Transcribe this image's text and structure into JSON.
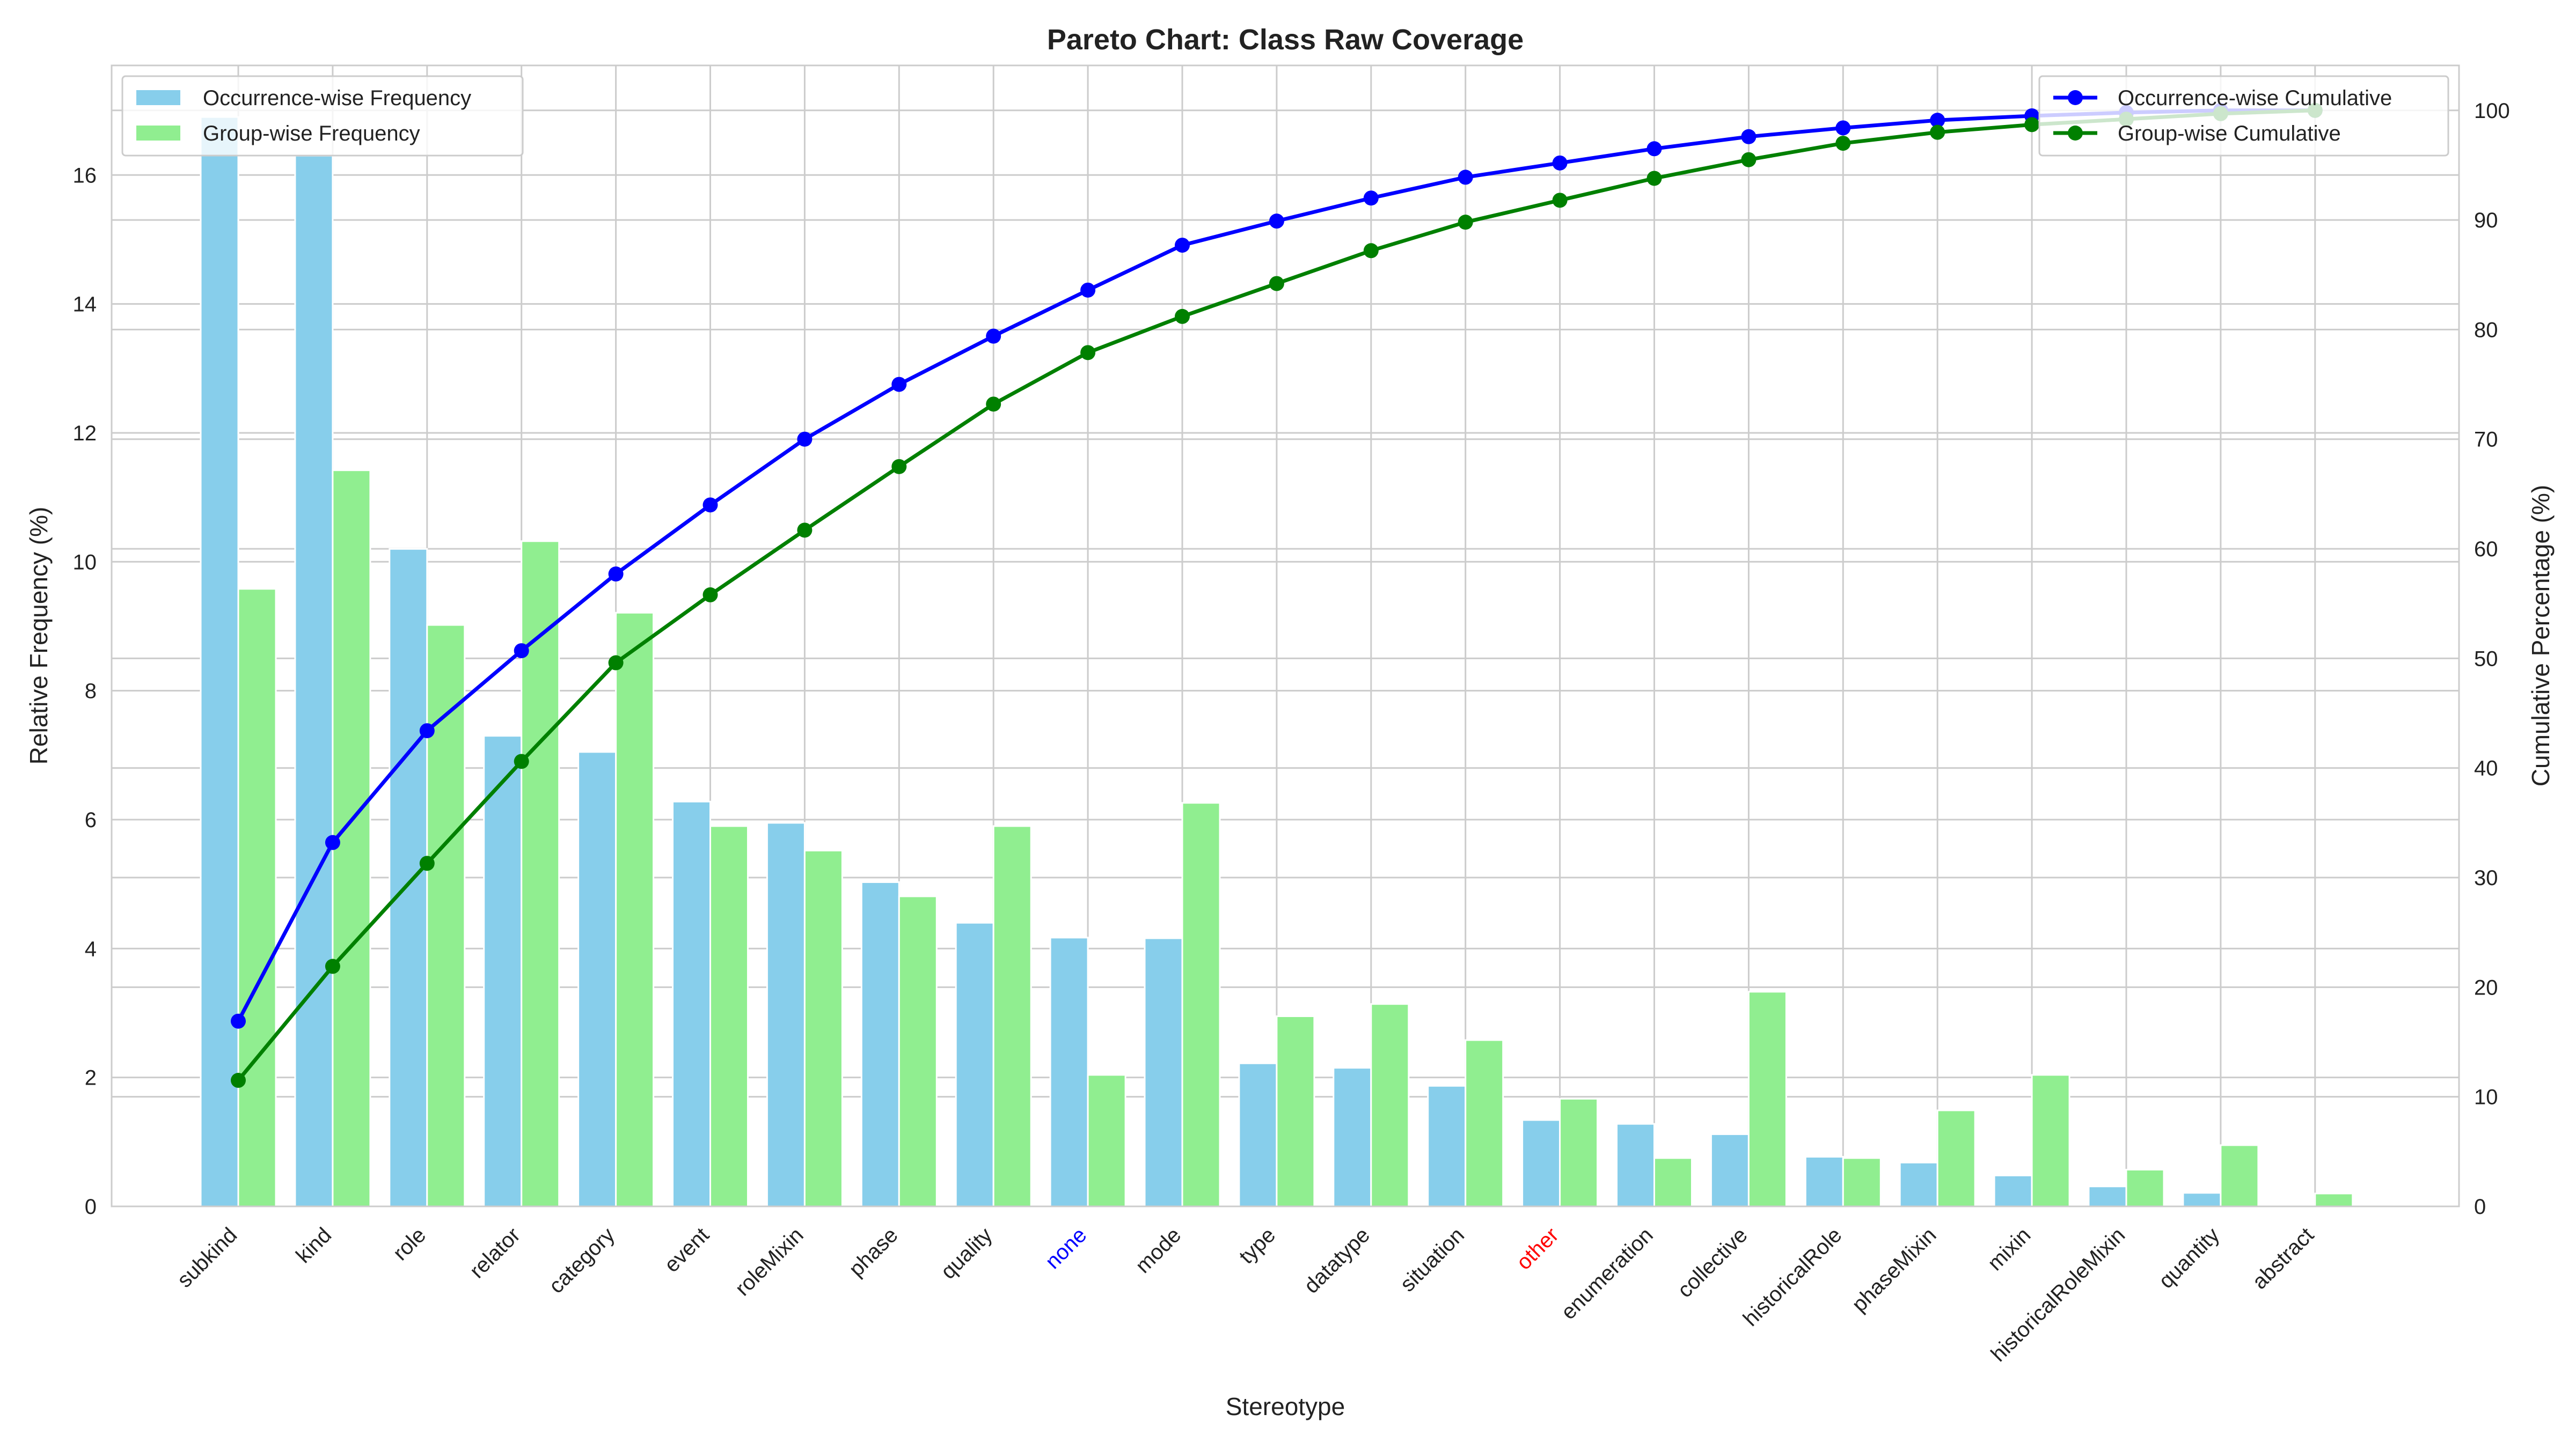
{
  "chart_data": {
    "type": "bar",
    "title": "Pareto Chart: Class Raw Coverage",
    "xlabel": "Stereotype",
    "ylabel": "Relative Frequency (%)",
    "y2label": "Cumulative Percentage (%)",
    "ylim": [
      0,
      17.7
    ],
    "y2lim": [
      0,
      104.1
    ],
    "yticks": [
      0,
      2,
      4,
      6,
      8,
      10,
      12,
      14,
      16
    ],
    "y2ticks": [
      0,
      10,
      20,
      30,
      40,
      50,
      60,
      70,
      80,
      90,
      100
    ],
    "grid": true,
    "categories": [
      "subkind",
      "kind",
      "role",
      "relator",
      "category",
      "event",
      "roleMixin",
      "phase",
      "quality",
      "none",
      "mode",
      "type",
      "datatype",
      "situation",
      "other",
      "enumeration",
      "collective",
      "historicalRole",
      "phaseMixin",
      "mixin",
      "historicalRoleMixin",
      "quantity",
      "abstract"
    ],
    "category_label_colors": {
      "none": "#0000ff",
      "other": "#ff0000"
    },
    "series": [
      {
        "name": "Occurrence-wise Frequency",
        "kind": "bar",
        "axis": "left",
        "color": "#87ceeb",
        "values": [
          16.9,
          16.3,
          10.2,
          7.3,
          7.05,
          6.28,
          5.95,
          5.03,
          4.4,
          4.17,
          4.16,
          2.22,
          2.15,
          1.87,
          1.34,
          1.28,
          1.12,
          0.77,
          0.68,
          0.48,
          0.31,
          0.21,
          0.0
        ]
      },
      {
        "name": "Group-wise Frequency",
        "kind": "bar",
        "axis": "left",
        "color": "#90ee90",
        "values": [
          9.58,
          11.42,
          9.02,
          10.32,
          9.21,
          5.9,
          5.52,
          4.81,
          5.9,
          2.04,
          6.26,
          2.95,
          3.14,
          2.58,
          1.67,
          0.75,
          3.33,
          0.75,
          1.49,
          2.04,
          0.57,
          0.95,
          0.2
        ]
      },
      {
        "name": "Occurrence-wise Cumulative",
        "kind": "line",
        "axis": "right",
        "color": "#0000ff",
        "values": [
          16.9,
          33.2,
          43.4,
          50.7,
          57.7,
          64.0,
          70.0,
          75.0,
          79.4,
          83.6,
          87.7,
          89.9,
          92.0,
          93.9,
          95.2,
          96.5,
          97.6,
          98.4,
          99.1,
          99.5,
          99.8,
          100.0,
          100.0
        ]
      },
      {
        "name": "Group-wise Cumulative",
        "kind": "line",
        "axis": "right",
        "color": "#008000",
        "values": [
          11.5,
          21.9,
          31.3,
          40.6,
          49.6,
          55.8,
          61.7,
          67.5,
          73.2,
          77.9,
          81.2,
          84.2,
          87.2,
          89.8,
          91.8,
          93.8,
          95.5,
          97.0,
          98.0,
          98.7,
          99.2,
          99.7,
          100.0
        ]
      }
    ],
    "legend_left": {
      "placement": "top-left",
      "entries": [
        "Occurrence-wise Frequency",
        "Group-wise Frequency"
      ]
    },
    "legend_right": {
      "placement": "top-right",
      "entries": [
        "Occurrence-wise Cumulative",
        "Group-wise Cumulative"
      ]
    }
  }
}
